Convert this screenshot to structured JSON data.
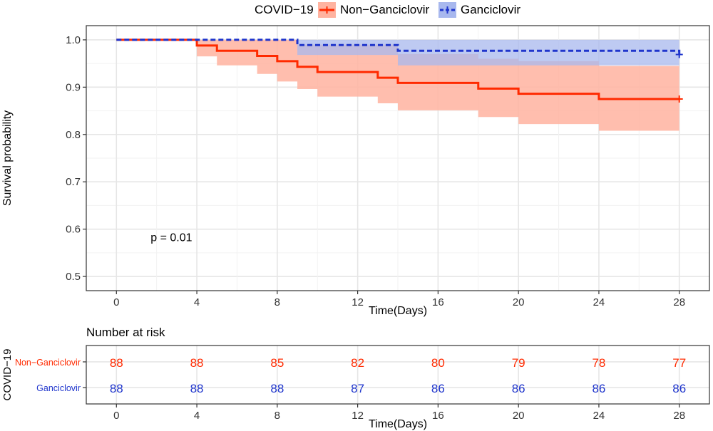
{
  "legend": {
    "title": "COVID−19",
    "position": "top",
    "entries": [
      {
        "label": "Non−Ganciclovir",
        "color": "#ff2a00",
        "fill": "#ffb3a0",
        "linestyle": "solid"
      },
      {
        "label": "Ganciclovir",
        "color": "#1f35cc",
        "fill": "#a8b8ee",
        "linestyle": "dashed"
      }
    ]
  },
  "chart_data": [
    {
      "type": "line",
      "subtype": "kaplan-meier",
      "title": "",
      "xlabel": "Time(Days)",
      "ylabel": "Survival probability",
      "xlim": [
        -1.5,
        29.5
      ],
      "ylim": [
        0.47,
        1.03
      ],
      "xticks": [
        0,
        4,
        8,
        12,
        16,
        20,
        24,
        28
      ],
      "yticks": [
        0.5,
        0.6,
        0.7,
        0.8,
        0.9,
        1.0
      ],
      "yticklabels": [
        "0.5",
        "0.6",
        "0.7",
        "0.8",
        "0.9",
        "1.0"
      ],
      "grid": true,
      "annotation": "p = 0.01",
      "annotation_pos": {
        "x": 1.7,
        "y": 0.575
      },
      "series": [
        {
          "name": "Non−Ganciclovir",
          "color": "#ff2a00",
          "fill": "#ffb3a0",
          "linestyle": "solid",
          "censor_mark_at_end": true,
          "steps": [
            {
              "x": 0,
              "y": 1.0,
              "lower": 1.0,
              "upper": 1.0
            },
            {
              "x": 4,
              "y": 0.988,
              "lower": 0.965,
              "upper": 1.0
            },
            {
              "x": 5,
              "y": 0.977,
              "lower": 0.946,
              "upper": 1.0
            },
            {
              "x": 7,
              "y": 0.966,
              "lower": 0.928,
              "upper": 1.0
            },
            {
              "x": 8,
              "y": 0.955,
              "lower": 0.912,
              "upper": 1.0
            },
            {
              "x": 9,
              "y": 0.943,
              "lower": 0.896,
              "upper": 0.99
            },
            {
              "x": 10,
              "y": 0.932,
              "lower": 0.88,
              "upper": 0.99
            },
            {
              "x": 13,
              "y": 0.92,
              "lower": 0.866,
              "upper": 0.99
            },
            {
              "x": 14,
              "y": 0.909,
              "lower": 0.851,
              "upper": 0.97
            },
            {
              "x": 18,
              "y": 0.897,
              "lower": 0.837,
              "upper": 0.96
            },
            {
              "x": 20,
              "y": 0.886,
              "lower": 0.822,
              "upper": 0.955
            },
            {
              "x": 24,
              "y": 0.875,
              "lower": 0.808,
              "upper": 0.945
            },
            {
              "x": 28,
              "y": 0.875,
              "lower": 0.808,
              "upper": 0.945
            }
          ]
        },
        {
          "name": "Ganciclovir",
          "color": "#1f35cc",
          "fill": "#a8b8ee",
          "linestyle": "dashed",
          "censor_mark_at_end": true,
          "steps": [
            {
              "x": 0,
              "y": 1.0,
              "lower": 1.0,
              "upper": 1.0
            },
            {
              "x": 9,
              "y": 0.989,
              "lower": 0.968,
              "upper": 1.0
            },
            {
              "x": 14,
              "y": 0.977,
              "lower": 0.946,
              "upper": 1.0
            },
            {
              "x": 28,
              "y": 0.969,
              "lower": 0.946,
              "upper": 1.0
            }
          ]
        }
      ]
    },
    {
      "type": "table",
      "title": "Number at risk",
      "xlabel": "Time(Days)",
      "ylabel": "COVID−19",
      "xlim": [
        -1.5,
        29.5
      ],
      "xticks": [
        0,
        4,
        8,
        12,
        16,
        20,
        24,
        28
      ],
      "rows": [
        {
          "name": "Non−Ganciclovir",
          "color": "#ff2a00",
          "values": [
            88,
            88,
            85,
            82,
            80,
            79,
            78,
            77
          ]
        },
        {
          "name": "Ganciclovir",
          "color": "#1f35cc",
          "values": [
            88,
            88,
            88,
            87,
            86,
            86,
            86,
            86
          ]
        }
      ]
    }
  ]
}
